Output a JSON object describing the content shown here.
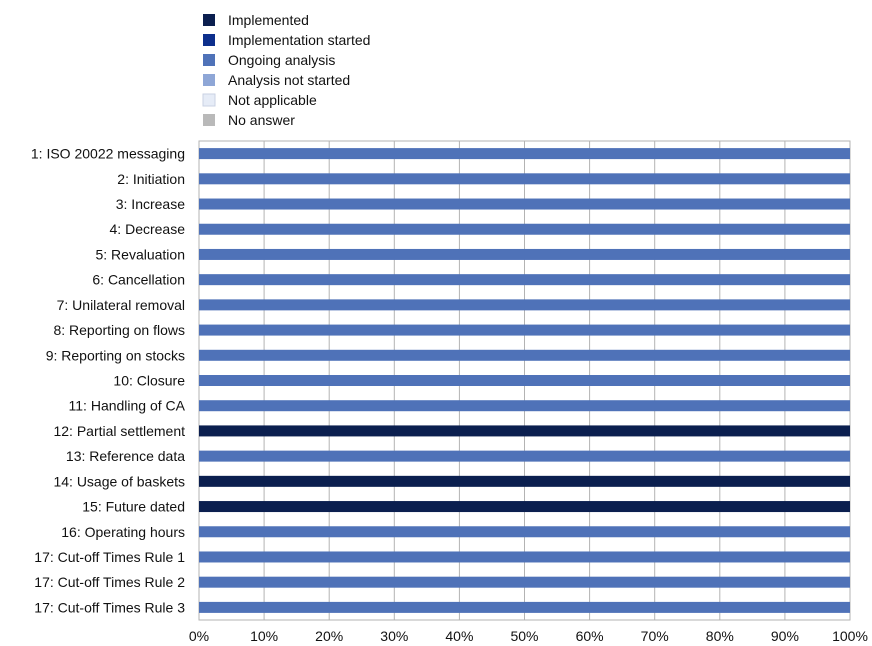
{
  "chart_data": {
    "type": "bar",
    "orientation": "horizontal",
    "stacked": true,
    "categories": [
      "1: ISO 20022 messaging",
      "2: Initiation",
      "3: Increase",
      "4: Decrease",
      "5: Revaluation",
      "6: Cancellation",
      "7: Unilateral removal",
      "8: Reporting on flows",
      "9: Reporting on stocks",
      "10: Closure",
      "11: Handling of CA",
      "12: Partial settlement",
      "13: Reference data",
      "14: Usage of baskets",
      "15: Future dated",
      "16: Operating hours",
      "17: Cut-off Times Rule 1",
      "17: Cut-off Times Rule 2",
      "17: Cut-off Times Rule 3"
    ],
    "series": [
      {
        "name": "Implemented",
        "color": "#0b1f4f",
        "values": [
          0,
          0,
          0,
          0,
          0,
          0,
          0,
          0,
          0,
          0,
          0,
          100,
          0,
          100,
          100,
          0,
          0,
          0,
          0
        ]
      },
      {
        "name": "Implementation started",
        "color": "#0d2f8c",
        "values": [
          0,
          0,
          0,
          0,
          0,
          0,
          0,
          0,
          0,
          0,
          0,
          0,
          0,
          0,
          0,
          0,
          0,
          0,
          0
        ]
      },
      {
        "name": "Ongoing analysis",
        "color": "#4f72b8",
        "values": [
          100,
          100,
          100,
          100,
          100,
          100,
          100,
          100,
          100,
          100,
          100,
          0,
          100,
          0,
          0,
          100,
          100,
          100,
          100
        ]
      },
      {
        "name": "Analysis not started",
        "color": "#8ea6d6",
        "values": [
          0,
          0,
          0,
          0,
          0,
          0,
          0,
          0,
          0,
          0,
          0,
          0,
          0,
          0,
          0,
          0,
          0,
          0,
          0
        ]
      },
      {
        "name": "Not applicable",
        "color": "#e6ecf7",
        "values": [
          0,
          0,
          0,
          0,
          0,
          0,
          0,
          0,
          0,
          0,
          0,
          0,
          0,
          0,
          0,
          0,
          0,
          0,
          0
        ]
      },
      {
        "name": "No answer",
        "color": "#b9b9b9",
        "values": [
          0,
          0,
          0,
          0,
          0,
          0,
          0,
          0,
          0,
          0,
          0,
          0,
          0,
          0,
          0,
          0,
          0,
          0,
          0
        ]
      }
    ],
    "xlim": [
      0,
      100
    ],
    "x_ticks": [
      "0%",
      "10%",
      "20%",
      "30%",
      "40%",
      "50%",
      "60%",
      "70%",
      "80%",
      "90%",
      "100%"
    ],
    "grid": true,
    "legend_position": "top-left"
  }
}
